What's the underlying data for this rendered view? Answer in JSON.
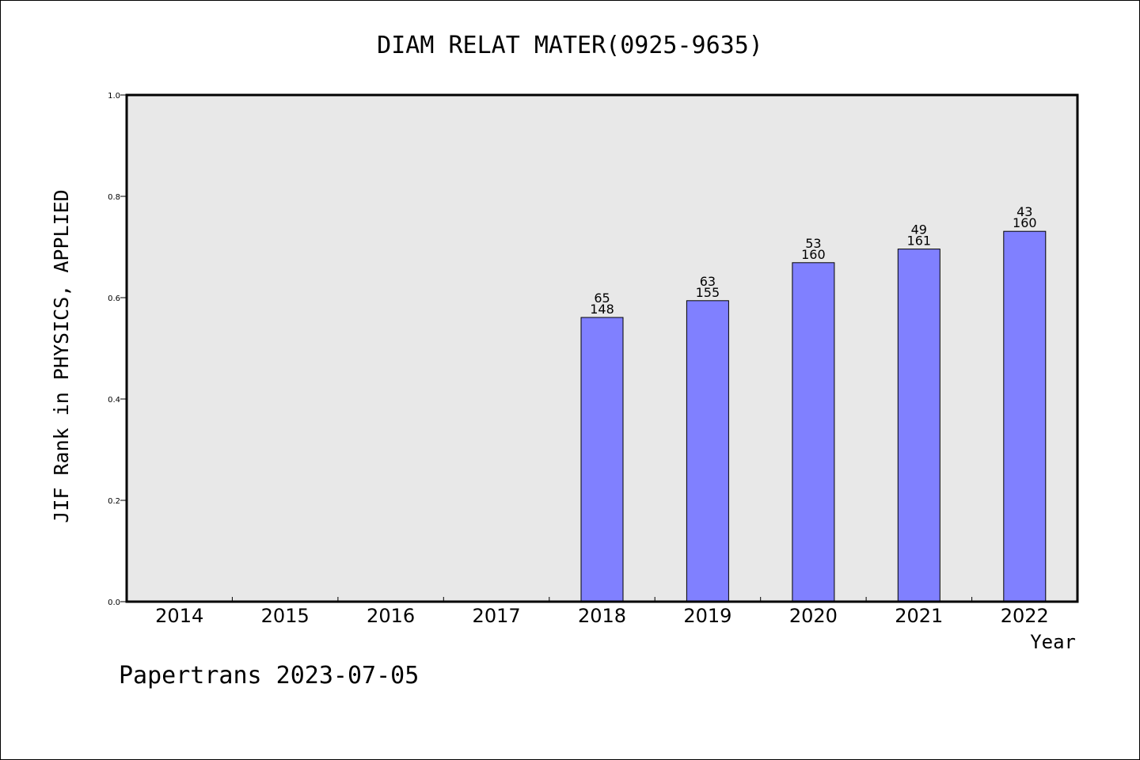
{
  "chart_data": {
    "type": "bar",
    "title": "DIAM RELAT MATER(0925-9635)",
    "xlabel": "Year",
    "ylabel": "JIF Rank in PHYSICS, APPLIED",
    "categories": [
      "2014",
      "2015",
      "2016",
      "2017",
      "2018",
      "2019",
      "2020",
      "2021",
      "2022"
    ],
    "values": [
      null,
      null,
      null,
      null,
      0.561,
      0.594,
      0.669,
      0.696,
      0.731
    ],
    "bar_labels": [
      null,
      null,
      null,
      null,
      {
        "rank": "65",
        "total": "148"
      },
      {
        "rank": "63",
        "total": "155"
      },
      {
        "rank": "53",
        "total": "160"
      },
      {
        "rank": "49",
        "total": "161"
      },
      {
        "rank": "43",
        "total": "160"
      }
    ],
    "ylim": [
      0.0,
      1.0
    ],
    "yticks": [
      "0.0",
      "0.2",
      "0.4",
      "0.6",
      "0.8",
      "1.0"
    ],
    "grid": false,
    "legend": "none",
    "colors": {
      "bar_fill": "#8080ff",
      "plot_background": "#e8e8e8",
      "axis": "#000000"
    }
  },
  "footer": {
    "text": "Papertrans 2023-07-05"
  }
}
